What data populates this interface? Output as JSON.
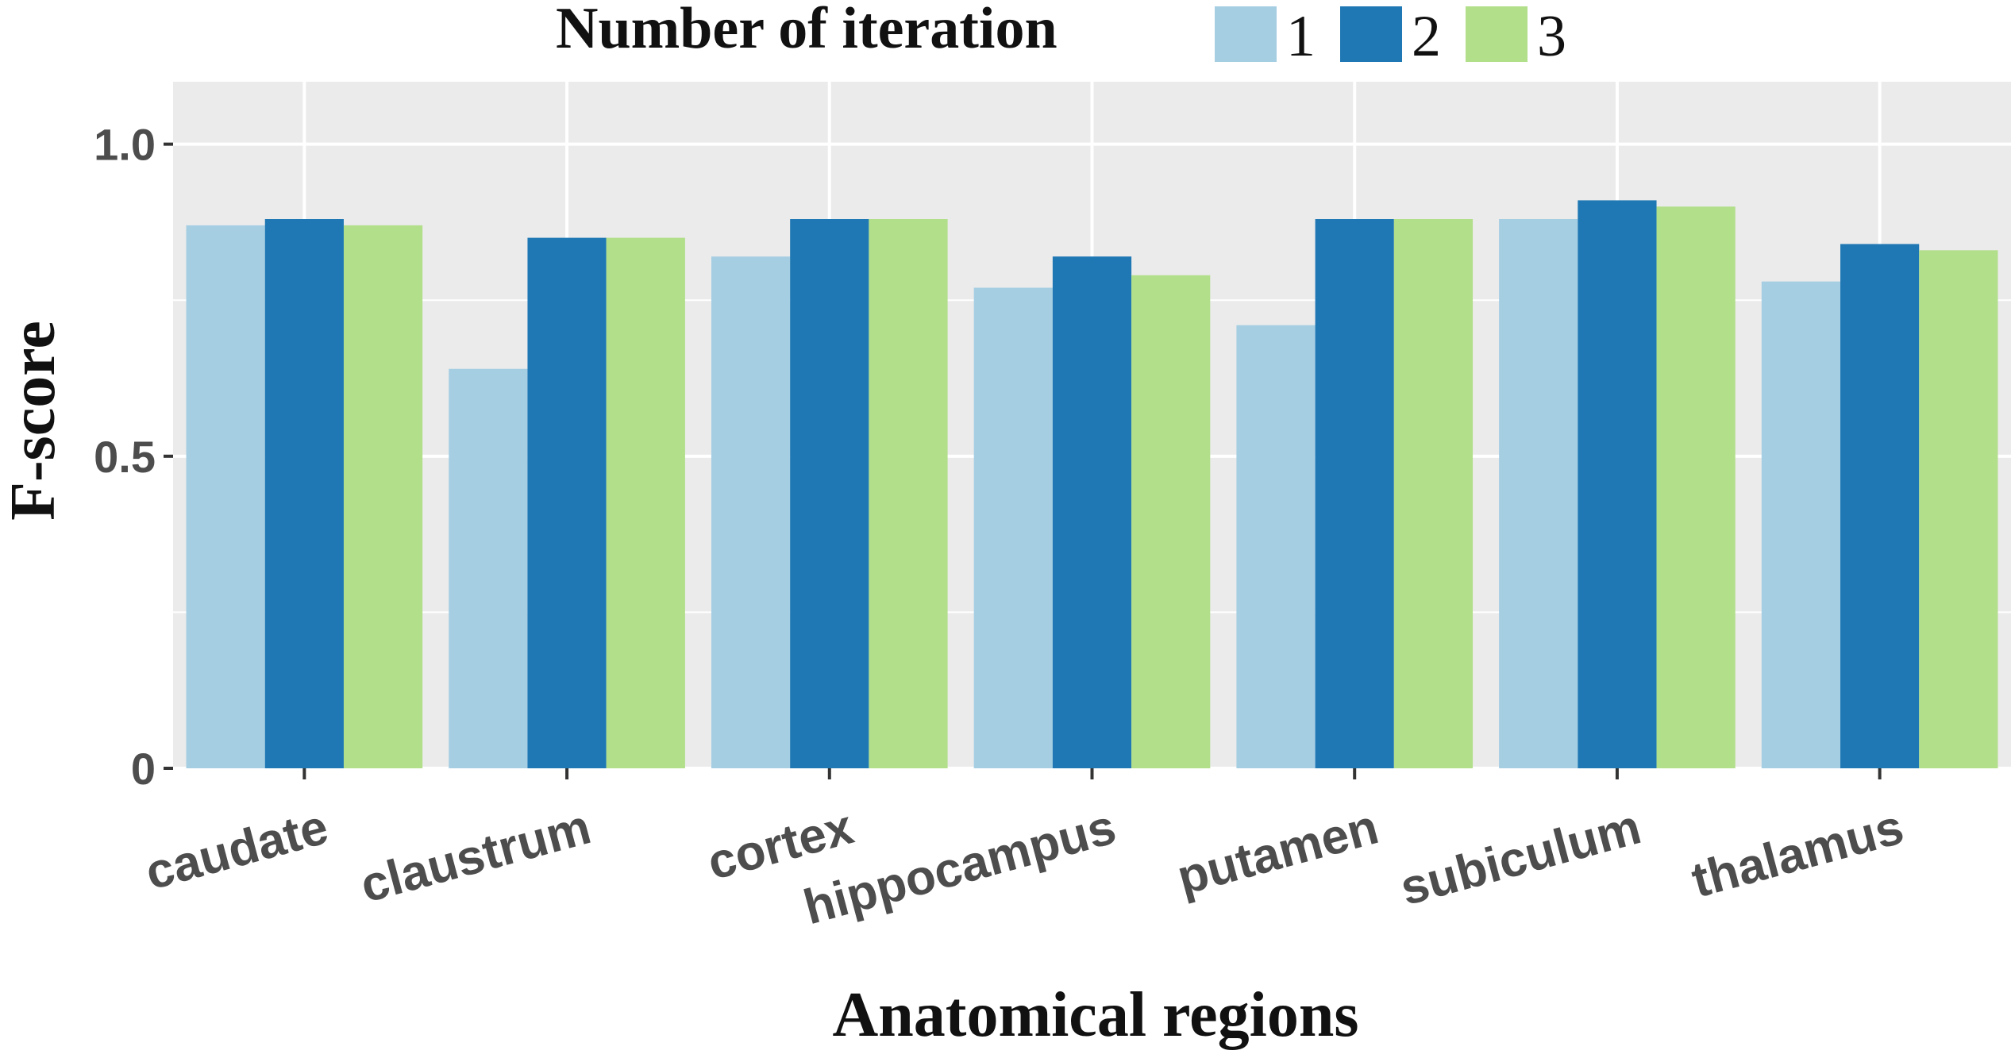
{
  "chart_data": {
    "type": "bar",
    "xlabel": "Anatomical regions",
    "ylabel": "F-score",
    "ylim": [
      0,
      1.1
    ],
    "yticks": [
      0,
      0.5,
      1.0
    ],
    "ytick_labels": [
      "0",
      "0.5",
      "1.0"
    ],
    "grid": true,
    "legend": {
      "title": "Number of iteration",
      "placement": "top"
    },
    "categories": [
      "caudate",
      "claustrum",
      "cortex",
      "hippocampus",
      "putamen",
      "subiculum",
      "thalamus"
    ],
    "series": [
      {
        "name": "1",
        "color": "#a6cee3",
        "values": [
          0.87,
          0.64,
          0.82,
          0.77,
          0.71,
          0.88,
          0.78
        ]
      },
      {
        "name": "2",
        "color": "#1f78b4",
        "values": [
          0.88,
          0.85,
          0.88,
          0.82,
          0.88,
          0.91,
          0.84
        ]
      },
      {
        "name": "3",
        "color": "#b2df8a",
        "values": [
          0.87,
          0.85,
          0.88,
          0.79,
          0.88,
          0.9,
          0.83
        ]
      }
    ]
  },
  "colors": {
    "panel": "#ebebeb",
    "gridline": "#ffffff",
    "axis_text": "#4d4d4d"
  }
}
